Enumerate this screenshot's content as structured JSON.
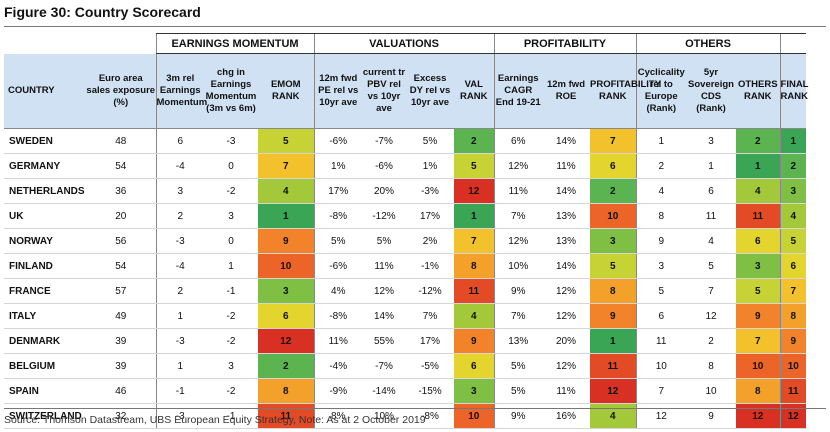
{
  "title": "Figure 30: Country Scorecard",
  "groups": [
    "EARNINGS MOMENTUM",
    "VALUATIONS",
    "PROFITABILITY",
    "OTHERS"
  ],
  "columns": [
    "COUNTRY",
    "Euro area sales exposure (%)",
    "3m rel Earnings Momentum",
    "chg in Earnings Momentum (3m vs 6m)",
    "EMOM RANK",
    "12m fwd PE rel vs 10yr ave",
    "current tr PBV rel vs 10yr ave",
    "Excess DY rel vs 10yr ave",
    "VAL RANK",
    "Earnings CAGR End 19-21",
    "12m fwd ROE",
    "PROFITABILITY RANK",
    "Cyclicality rel to Europe (Rank)",
    "5yr Sovereign CDS (Rank)",
    "OTHERS RANK",
    "FINAL RANK"
  ],
  "rows": [
    [
      "SWEDEN",
      "48",
      "6",
      "-3",
      "5",
      "-6%",
      "-7%",
      "5%",
      "2",
      "6%",
      "14%",
      "7",
      "1",
      "3",
      "2",
      "1"
    ],
    [
      "GERMANY",
      "54",
      "-4",
      "0",
      "7",
      "1%",
      "-6%",
      "1%",
      "5",
      "12%",
      "11%",
      "6",
      "2",
      "1",
      "1",
      "2"
    ],
    [
      "NETHERLANDS",
      "36",
      "3",
      "-2",
      "4",
      "17%",
      "20%",
      "-3%",
      "12",
      "11%",
      "14%",
      "2",
      "4",
      "6",
      "4",
      "3"
    ],
    [
      "UK",
      "20",
      "2",
      "3",
      "1",
      "-8%",
      "-12%",
      "17%",
      "1",
      "7%",
      "13%",
      "10",
      "8",
      "11",
      "11",
      "4"
    ],
    [
      "NORWAY",
      "56",
      "-3",
      "0",
      "9",
      "5%",
      "5%",
      "2%",
      "7",
      "12%",
      "13%",
      "3",
      "9",
      "4",
      "6",
      "5"
    ],
    [
      "FINLAND",
      "54",
      "-4",
      "1",
      "10",
      "-6%",
      "11%",
      "-1%",
      "8",
      "10%",
      "14%",
      "5",
      "3",
      "5",
      "3",
      "6"
    ],
    [
      "FRANCE",
      "57",
      "2",
      "-1",
      "3",
      "4%",
      "12%",
      "-12%",
      "11",
      "9%",
      "12%",
      "8",
      "5",
      "7",
      "5",
      "7"
    ],
    [
      "ITALY",
      "49",
      "1",
      "-2",
      "6",
      "-8%",
      "14%",
      "7%",
      "4",
      "7%",
      "12%",
      "9",
      "6",
      "12",
      "9",
      "8"
    ],
    [
      "DENMARK",
      "39",
      "-3",
      "-2",
      "12",
      "11%",
      "55%",
      "17%",
      "9",
      "13%",
      "20%",
      "1",
      "11",
      "2",
      "7",
      "9"
    ],
    [
      "BELGIUM",
      "39",
      "1",
      "3",
      "2",
      "-4%",
      "-7%",
      "-5%",
      "6",
      "5%",
      "12%",
      "11",
      "10",
      "8",
      "10",
      "10"
    ],
    [
      "SPAIN",
      "46",
      "-1",
      "-2",
      "8",
      "-9%",
      "-14%",
      "-15%",
      "3",
      "5%",
      "11%",
      "12",
      "7",
      "10",
      "8",
      "11"
    ],
    [
      "SWITZERLAND",
      "32",
      "-3",
      "-1",
      "11",
      "8%",
      "10%",
      "-8%",
      "10",
      "9%",
      "16%",
      "4",
      "12",
      "9",
      "12",
      "12"
    ]
  ],
  "rank_colors": {
    "1": "#3aa655",
    "2": "#5bb450",
    "3": "#7fbf44",
    "4": "#a3c93b",
    "5": "#c7d234",
    "6": "#e4d52e",
    "7": "#f2c12b",
    "8": "#f4a12b",
    "9": "#f2832a",
    "10": "#ec6428",
    "11": "#e34a26",
    "12": "#d93024"
  },
  "source": "Source:  Thomson Datastream, UBS European Equity Strategy, Note: As at 2 October 2019"
}
